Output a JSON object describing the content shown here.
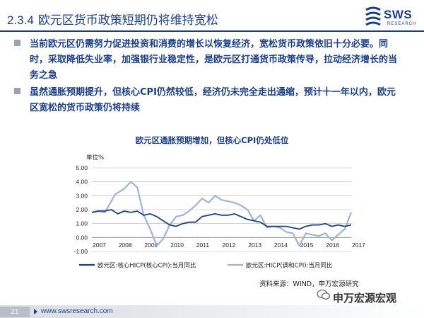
{
  "header": {
    "section_number": "2.3.4",
    "title": "欧元区货币政策短期仍将维持宽松",
    "logo_text": "SWS",
    "logo_subtext": "RESEARCH"
  },
  "bullets": [
    {
      "text": "当前欧元区仍需努力促进投资和消费的增长以恢复经济，宽松货币政策依旧十分必要。同时，采取降低失业率，加强银行业稳定性，是欧元区打通货币政策传导，拉动经济增长的当务之急"
    },
    {
      "text": "虽然通胀预期提升，但核心CPI仍然较低，经济仍未完全走出通缩，预计十一年以内，欧元区宽松的货币政策仍将持续"
    }
  ],
  "chart_data": {
    "type": "line",
    "title": "欧元区通胀预期增加，但核心CPI仍处低位",
    "ylabel": "单位%",
    "ylim": [
      -1.0,
      5.0
    ],
    "yticks": [
      "5.00",
      "4.00",
      "3.00",
      "2.00",
      "1.00",
      "0.00",
      "-1.00"
    ],
    "xlim": [
      2007.0,
      2017.0
    ],
    "xticks": [
      "2007",
      "2008",
      "2009",
      "2010",
      "2011",
      "2012",
      "2013",
      "2014",
      "2015",
      "2016",
      "2017"
    ],
    "grid": true,
    "legend_position": "bottom",
    "series": [
      {
        "name": "欧元区:核心HICP(核心CPI):当月同比",
        "color": "#1a3e8c",
        "style": "solid",
        "points": [
          [
            2007.0,
            1.8
          ],
          [
            2007.25,
            1.9
          ],
          [
            2007.5,
            1.9
          ],
          [
            2007.75,
            2.0
          ],
          [
            2008.0,
            1.7
          ],
          [
            2008.25,
            1.9
          ],
          [
            2008.5,
            1.8
          ],
          [
            2008.75,
            1.9
          ],
          [
            2009.0,
            1.6
          ],
          [
            2009.25,
            1.7
          ],
          [
            2009.5,
            1.5
          ],
          [
            2009.75,
            1.2
          ],
          [
            2010.0,
            0.9
          ],
          [
            2010.25,
            0.8
          ],
          [
            2010.5,
            1.0
          ],
          [
            2010.75,
            1.1
          ],
          [
            2011.0,
            1.1
          ],
          [
            2011.25,
            1.5
          ],
          [
            2011.5,
            1.6
          ],
          [
            2011.75,
            1.7
          ],
          [
            2012.0,
            1.6
          ],
          [
            2012.25,
            1.6
          ],
          [
            2012.5,
            1.7
          ],
          [
            2012.75,
            1.5
          ],
          [
            2013.0,
            1.3
          ],
          [
            2013.25,
            1.2
          ],
          [
            2013.5,
            1.1
          ],
          [
            2013.75,
            0.8
          ],
          [
            2014.0,
            0.8
          ],
          [
            2014.25,
            0.8
          ],
          [
            2014.5,
            0.8
          ],
          [
            2014.75,
            0.7
          ],
          [
            2015.0,
            0.6
          ],
          [
            2015.25,
            0.8
          ],
          [
            2015.5,
            0.9
          ],
          [
            2015.75,
            0.9
          ],
          [
            2016.0,
            1.0
          ],
          [
            2016.25,
            0.8
          ],
          [
            2016.5,
            0.9
          ],
          [
            2016.75,
            0.8
          ],
          [
            2017.0,
            0.9
          ]
        ]
      },
      {
        "name": "欧元区:HICP(调和CPI):当月同比",
        "color": "#9fb3d8",
        "style": "solid",
        "points": [
          [
            2007.0,
            1.8
          ],
          [
            2007.25,
            1.9
          ],
          [
            2007.5,
            1.8
          ],
          [
            2007.75,
            2.6
          ],
          [
            2007.9,
            3.1
          ],
          [
            2008.25,
            3.5
          ],
          [
            2008.5,
            4.0
          ],
          [
            2008.75,
            3.6
          ],
          [
            2009.0,
            1.6
          ],
          [
            2009.25,
            0.6
          ],
          [
            2009.5,
            -0.6
          ],
          [
            2009.75,
            -0.1
          ],
          [
            2010.0,
            0.9
          ],
          [
            2010.25,
            1.5
          ],
          [
            2010.5,
            1.6
          ],
          [
            2010.75,
            1.9
          ],
          [
            2011.0,
            2.3
          ],
          [
            2011.25,
            2.8
          ],
          [
            2011.5,
            2.5
          ],
          [
            2011.75,
            3.0
          ],
          [
            2012.0,
            2.7
          ],
          [
            2012.25,
            2.6
          ],
          [
            2012.5,
            2.5
          ],
          [
            2012.75,
            2.3
          ],
          [
            2013.0,
            2.0
          ],
          [
            2013.25,
            1.2
          ],
          [
            2013.5,
            1.6
          ],
          [
            2013.75,
            0.7
          ],
          [
            2014.0,
            0.8
          ],
          [
            2014.25,
            0.7
          ],
          [
            2014.5,
            0.4
          ],
          [
            2014.75,
            0.3
          ],
          [
            2015.0,
            -0.6
          ],
          [
            2015.25,
            0.3
          ],
          [
            2015.5,
            0.2
          ],
          [
            2015.75,
            0.1
          ],
          [
            2016.0,
            0.3
          ],
          [
            2016.25,
            -0.2
          ],
          [
            2016.5,
            0.2
          ],
          [
            2016.75,
            0.6
          ],
          [
            2017.0,
            1.8
          ]
        ]
      }
    ]
  },
  "source": "资料来源：WIND，申万宏源研究",
  "footer": {
    "page_number": "21",
    "url": "www.swsresearch.com",
    "watermark": "申万宏源宏观"
  }
}
